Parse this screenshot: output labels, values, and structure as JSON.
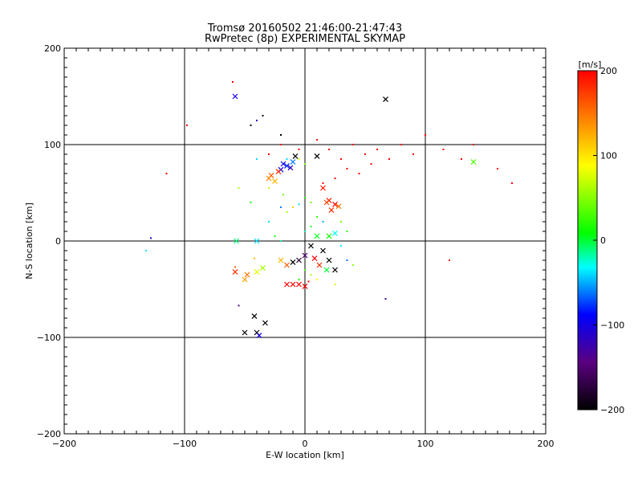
{
  "chart_data": {
    "type": "scatter",
    "title": "Tromsø 20160502 21:46:00-21:47:43",
    "subtitle": "RwPretec (8p) EXPERIMENTAL SKYMAP",
    "xlabel": "E-W location [km]",
    "ylabel": "N-S location [km]",
    "xlim": [
      -200,
      200
    ],
    "ylim": [
      -200,
      200
    ],
    "x_ticks": [
      -200,
      -100,
      0,
      100,
      200
    ],
    "y_ticks": [
      -200,
      -100,
      0,
      100,
      200
    ],
    "grid": true,
    "colorbar": {
      "label": "[m/s]",
      "range": [
        -200,
        200
      ],
      "ticks": [
        200,
        100,
        0,
        -100,
        -200
      ],
      "colormap": "black-purple-blue-cyan-green-yellow-orange-red"
    },
    "markers": [
      "dot",
      "x"
    ],
    "points": [
      [
        -58,
        150,
        -100,
        "x"
      ],
      [
        67,
        147,
        -200,
        "x"
      ],
      [
        -35,
        130,
        -190,
        "dot"
      ],
      [
        -40,
        125,
        -120,
        "dot"
      ],
      [
        -45,
        120,
        -200,
        "dot"
      ],
      [
        -20,
        110,
        -200,
        "dot"
      ],
      [
        -60,
        165,
        200,
        "dot"
      ],
      [
        -98,
        120,
        200,
        "dot"
      ],
      [
        -115,
        70,
        200,
        "dot"
      ],
      [
        -30,
        90,
        200,
        "dot"
      ],
      [
        -20,
        100,
        200,
        "dot"
      ],
      [
        -5,
        95,
        200,
        "dot"
      ],
      [
        10,
        105,
        200,
        "dot"
      ],
      [
        20,
        95,
        200,
        "dot"
      ],
      [
        30,
        85,
        200,
        "dot"
      ],
      [
        40,
        100,
        200,
        "dot"
      ],
      [
        50,
        90,
        200,
        "dot"
      ],
      [
        60,
        95,
        200,
        "dot"
      ],
      [
        70,
        85,
        200,
        "dot"
      ],
      [
        80,
        100,
        200,
        "dot"
      ],
      [
        90,
        90,
        200,
        "dot"
      ],
      [
        100,
        110,
        200,
        "dot"
      ],
      [
        115,
        95,
        200,
        "dot"
      ],
      [
        130,
        85,
        200,
        "dot"
      ],
      [
        140,
        100,
        200,
        "dot"
      ],
      [
        160,
        75,
        200,
        "dot"
      ],
      [
        172,
        60,
        200,
        "dot"
      ],
      [
        120,
        -20,
        200,
        "dot"
      ],
      [
        55,
        80,
        200,
        "dot"
      ],
      [
        45,
        70,
        200,
        "dot"
      ],
      [
        35,
        75,
        200,
        "dot"
      ],
      [
        25,
        65,
        200,
        "dot"
      ],
      [
        15,
        60,
        200,
        "dot"
      ],
      [
        140,
        82,
        30,
        "x"
      ],
      [
        -18,
        80,
        -100,
        "x"
      ],
      [
        -15,
        78,
        -80,
        "x"
      ],
      [
        -12,
        76,
        -120,
        "x"
      ],
      [
        -20,
        74,
        -90,
        "x"
      ],
      [
        -10,
        82,
        -60,
        "x"
      ],
      [
        -22,
        72,
        180,
        "x"
      ],
      [
        -28,
        68,
        160,
        "x"
      ],
      [
        -30,
        65,
        140,
        "x"
      ],
      [
        -25,
        62,
        120,
        "x"
      ],
      [
        -8,
        88,
        -200,
        "x"
      ],
      [
        10,
        88,
        -200,
        "x"
      ],
      [
        -5,
        85,
        80,
        "dot"
      ],
      [
        0,
        80,
        50,
        "dot"
      ],
      [
        -15,
        85,
        -40,
        "dot"
      ],
      [
        15,
        55,
        190,
        "x"
      ],
      [
        20,
        42,
        190,
        "x"
      ],
      [
        25,
        38,
        200,
        "x"
      ],
      [
        22,
        32,
        180,
        "x"
      ],
      [
        28,
        36,
        150,
        "x"
      ],
      [
        18,
        40,
        170,
        "x"
      ],
      [
        5,
        40,
        40,
        "dot"
      ],
      [
        0,
        45,
        20,
        "dot"
      ],
      [
        -5,
        38,
        -40,
        "dot"
      ],
      [
        -15,
        30,
        60,
        "dot"
      ],
      [
        -10,
        35,
        110,
        "dot"
      ],
      [
        10,
        25,
        20,
        "dot"
      ],
      [
        15,
        20,
        -50,
        "dot"
      ],
      [
        5,
        15,
        10,
        "dot"
      ],
      [
        0,
        10,
        -20,
        "dot"
      ],
      [
        10,
        5,
        5,
        "x"
      ],
      [
        20,
        5,
        10,
        "x"
      ],
      [
        25,
        8,
        -30,
        "x"
      ],
      [
        5,
        -5,
        -200,
        "x"
      ],
      [
        15,
        -10,
        -200,
        "x"
      ],
      [
        0,
        -15,
        -150,
        "x"
      ],
      [
        -5,
        -20,
        -180,
        "x"
      ],
      [
        -10,
        -22,
        -200,
        "x"
      ],
      [
        8,
        -18,
        200,
        "x"
      ],
      [
        12,
        -25,
        180,
        "x"
      ],
      [
        -15,
        -25,
        160,
        "x"
      ],
      [
        -20,
        -20,
        120,
        "x"
      ],
      [
        20,
        -20,
        -200,
        "x"
      ],
      [
        25,
        -30,
        -200,
        "x"
      ],
      [
        18,
        -30,
        0,
        "x"
      ],
      [
        0,
        -30,
        30,
        "dot"
      ],
      [
        5,
        -35,
        60,
        "dot"
      ],
      [
        10,
        -40,
        90,
        "dot"
      ],
      [
        -5,
        -40,
        20,
        "dot"
      ],
      [
        -10,
        -45,
        200,
        "x"
      ],
      [
        -5,
        -45,
        200,
        "x"
      ],
      [
        0,
        -47,
        200,
        "x"
      ],
      [
        -15,
        -45,
        200,
        "x"
      ],
      [
        3,
        -42,
        200,
        "dot"
      ],
      [
        -35,
        -28,
        60,
        "x"
      ],
      [
        -40,
        -32,
        80,
        "x"
      ],
      [
        -48,
        -35,
        150,
        "x"
      ],
      [
        -58,
        -32,
        180,
        "x"
      ],
      [
        -58,
        -27,
        160,
        "dot"
      ],
      [
        -50,
        -40,
        130,
        "x"
      ],
      [
        -42,
        -18,
        120,
        "dot"
      ],
      [
        -57,
        0,
        -10,
        "x"
      ],
      [
        -40,
        0,
        -40,
        "x"
      ],
      [
        -132,
        -10,
        -40,
        "dot"
      ],
      [
        -128,
        3,
        -110,
        "dot"
      ],
      [
        -55,
        -67,
        -140,
        "dot"
      ],
      [
        -42,
        -78,
        -200,
        "x"
      ],
      [
        -50,
        -95,
        -200,
        "x"
      ],
      [
        -40,
        -95,
        -200,
        "x"
      ],
      [
        -38,
        -98,
        -100,
        "x"
      ],
      [
        -33,
        -85,
        -200,
        "x"
      ],
      [
        67,
        -60,
        -120,
        "dot"
      ],
      [
        -20,
        0,
        -20,
        "dot"
      ],
      [
        -25,
        5,
        10,
        "dot"
      ],
      [
        -30,
        20,
        -40,
        "dot"
      ],
      [
        -20,
        35,
        -60,
        "dot"
      ],
      [
        -18,
        48,
        40,
        "dot"
      ],
      [
        -30,
        55,
        70,
        "dot"
      ],
      [
        -40,
        85,
        -40,
        "dot"
      ],
      [
        -55,
        55,
        60,
        "dot"
      ],
      [
        -45,
        40,
        10,
        "dot"
      ],
      [
        30,
        20,
        40,
        "dot"
      ],
      [
        35,
        10,
        20,
        "dot"
      ],
      [
        30,
        -5,
        -30,
        "dot"
      ],
      [
        35,
        -20,
        -60,
        "dot"
      ],
      [
        40,
        -25,
        50,
        "dot"
      ],
      [
        25,
        -45,
        70,
        "dot"
      ]
    ]
  }
}
